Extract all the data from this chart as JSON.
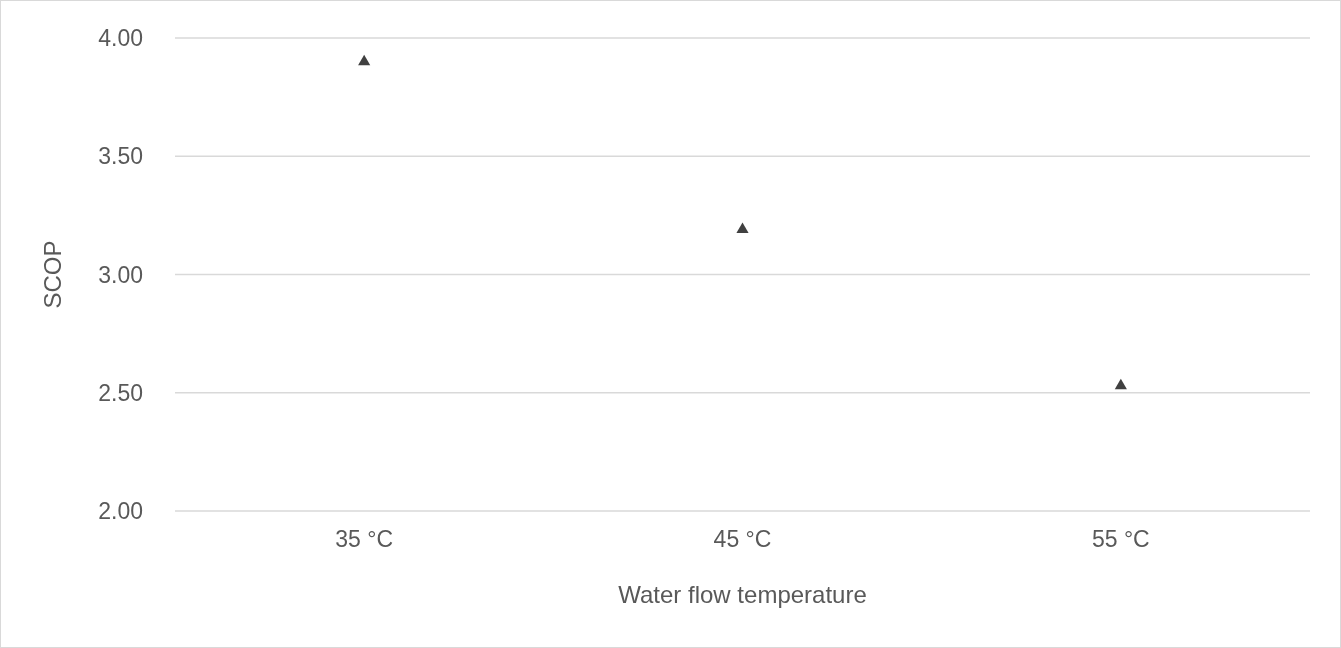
{
  "chart_data": {
    "type": "scatter",
    "xlabel": "Water flow temperature",
    "ylabel": "SCOP",
    "categories": [
      "35 °C",
      "45 °C",
      "55 °C"
    ],
    "series": [
      {
        "color": "#404040",
        "values": [
          3.9,
          3.19,
          2.53
        ]
      }
    ],
    "ylim": [
      2,
      4
    ],
    "yticks": [
      {
        "value": 2,
        "label": "2.00"
      },
      {
        "value": 2.5,
        "label": "2.50"
      },
      {
        "value": 3,
        "label": "3.00"
      },
      {
        "value": 3.5,
        "label": "3.50"
      },
      {
        "value": 4,
        "label": "4.00"
      }
    ],
    "grid": "y",
    "marker": "triangle"
  }
}
